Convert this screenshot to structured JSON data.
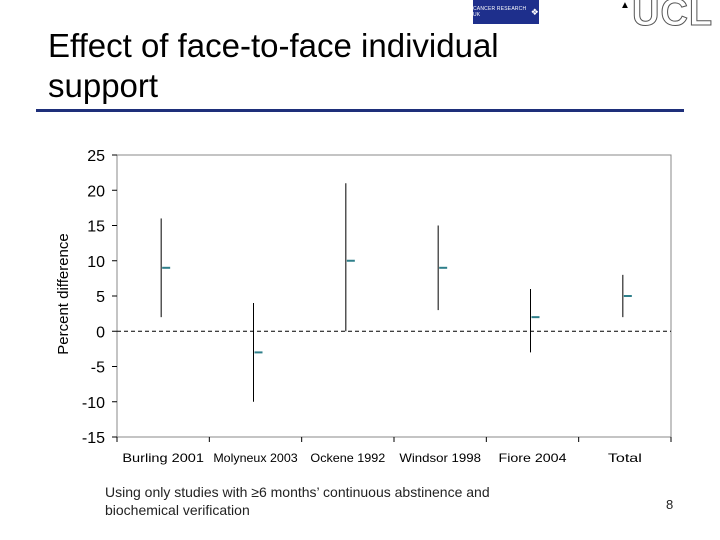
{
  "slide": {
    "title": "Effect of face-to-face individual support",
    "caption": "Using only studies with ≥6 months’ continuous abstinence and biochemical verification",
    "page_number": "8"
  },
  "logos": {
    "cancer_research": "CANCER RESEARCH UK",
    "ucl": "UCL"
  },
  "colors": {
    "title_rule": "#1e2f7a",
    "estimate": "#2e7f8a",
    "whisker": "#000000"
  },
  "chart_data": {
    "type": "scatter",
    "title": "",
    "xlabel": "",
    "ylabel": "Percent difference",
    "ylim": [
      -15,
      25
    ],
    "y_ticks": [
      25,
      20,
      15,
      10,
      5,
      0,
      -5,
      -10,
      -15
    ],
    "y_tick_labels": [
      "25",
      "20",
      "15",
      "10",
      "5",
      "0",
      "-5",
      "-10",
      "-15"
    ],
    "reference_line": 0,
    "categories": [
      "Burling 2001",
      "Molyneux 2003",
      "Ockene 1992",
      "Windsor 1998",
      "Fiore 2004",
      "Total"
    ],
    "series": [
      {
        "name": "Estimate",
        "values": [
          9,
          -3,
          10,
          9,
          2,
          5
        ]
      },
      {
        "name": "Lower",
        "values": [
          2,
          -10,
          0,
          3,
          -3,
          2
        ]
      },
      {
        "name": "Upper",
        "values": [
          16,
          4,
          21,
          15,
          6,
          8
        ]
      }
    ]
  }
}
